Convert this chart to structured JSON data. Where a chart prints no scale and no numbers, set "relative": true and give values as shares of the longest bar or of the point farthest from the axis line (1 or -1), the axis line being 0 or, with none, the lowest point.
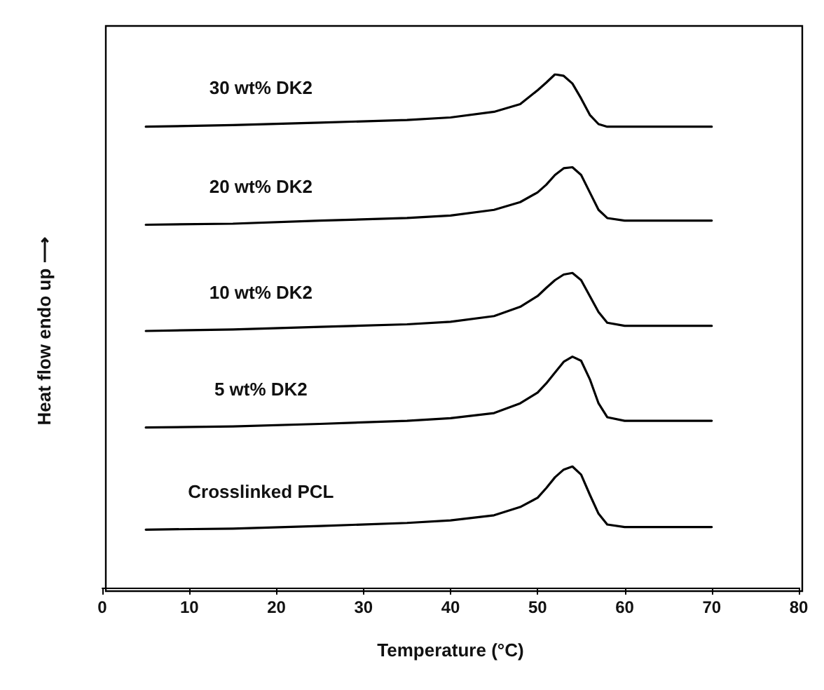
{
  "chart_data": {
    "type": "line",
    "xlabel": "Temperature (°C)",
    "ylabel": "Heat flow endo up ⟶",
    "relative": true,
    "x": [
      5,
      15,
      25,
      35,
      40,
      45,
      48,
      50,
      51,
      52,
      53,
      54,
      55,
      56,
      57,
      58,
      60,
      70
    ],
    "xlim": [
      0,
      80
    ],
    "xticks": [
      0,
      10,
      20,
      30,
      40,
      50,
      60,
      70,
      80
    ],
    "tick_labels": "x",
    "grid": false,
    "legend": false,
    "marker": "none",
    "line_style": "solid",
    "series": [
      {
        "name": "30 wt% DK2",
        "color": "#000000",
        "values": [
          0.898,
          0.901,
          0.906,
          0.911,
          0.916,
          0.927,
          0.942,
          0.969,
          0.984,
          1,
          0.997,
          0.982,
          0.953,
          0.921,
          0.903,
          0.898,
          0.898,
          0.898
        ]
      },
      {
        "name": "20 wt% DK2",
        "color": "#000000",
        "values": [
          0.707,
          0.709,
          0.715,
          0.72,
          0.725,
          0.736,
          0.751,
          0.77,
          0.785,
          0.804,
          0.817,
          0.819,
          0.804,
          0.77,
          0.736,
          0.72,
          0.715,
          0.715
        ]
      },
      {
        "name": "10 wt% DK2",
        "color": "#000000",
        "values": [
          0.5,
          0.503,
          0.508,
          0.513,
          0.518,
          0.529,
          0.547,
          0.568,
          0.584,
          0.599,
          0.61,
          0.613,
          0.599,
          0.568,
          0.537,
          0.516,
          0.51,
          0.51
        ]
      },
      {
        "name": "5 wt% DK2",
        "color": "#000000",
        "values": [
          0.312,
          0.314,
          0.319,
          0.325,
          0.33,
          0.34,
          0.359,
          0.38,
          0.398,
          0.419,
          0.44,
          0.45,
          0.442,
          0.406,
          0.359,
          0.332,
          0.325,
          0.325
        ]
      },
      {
        "name": "Crosslinked PCL",
        "color": "#000000",
        "values": [
          0.113,
          0.115,
          0.12,
          0.126,
          0.131,
          0.141,
          0.157,
          0.175,
          0.194,
          0.215,
          0.23,
          0.236,
          0.22,
          0.181,
          0.144,
          0.123,
          0.118,
          0.118
        ]
      }
    ]
  }
}
